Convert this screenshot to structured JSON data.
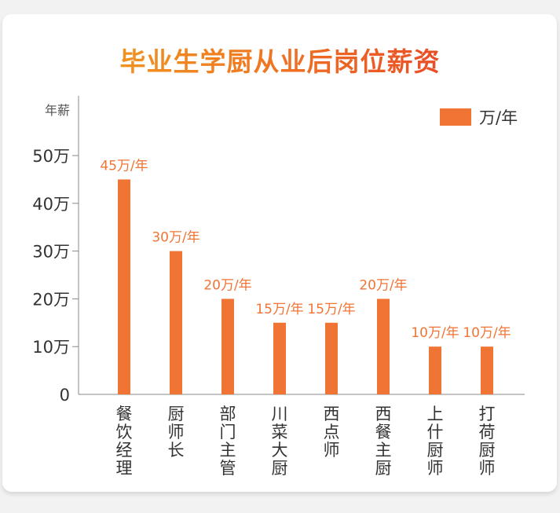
{
  "chart_data": {
    "type": "bar",
    "title": "毕业生学厨从业后岗位薪资",
    "ylabel": "年薪",
    "xlabel": "",
    "categories": [
      "餐饮经理",
      "厨师长",
      "部门主管",
      "川菜大厨",
      "西点师",
      "西餐主厨",
      "上什厨师",
      "打荷厨师"
    ],
    "series": [
      {
        "name": "万/年",
        "values": [
          45,
          30,
          20,
          15,
          15,
          20,
          10,
          10
        ]
      }
    ],
    "data_labels": [
      "45万/年",
      "30万/年",
      "20万/年",
      "15万/年",
      "15万/年",
      "20万/年",
      "10万/年",
      "10万/年"
    ],
    "yticks": [
      0,
      10,
      20,
      30,
      40,
      50
    ],
    "ytick_labels": [
      "0",
      "10万",
      "20万",
      "30万",
      "40万",
      "50万"
    ],
    "ylim": [
      0,
      50
    ],
    "grid": false,
    "legend": "top-right",
    "colors": {
      "bar": "#f07535",
      "label": "#f07535",
      "title_start": "#f2a81f",
      "title_end": "#e5322a"
    }
  }
}
